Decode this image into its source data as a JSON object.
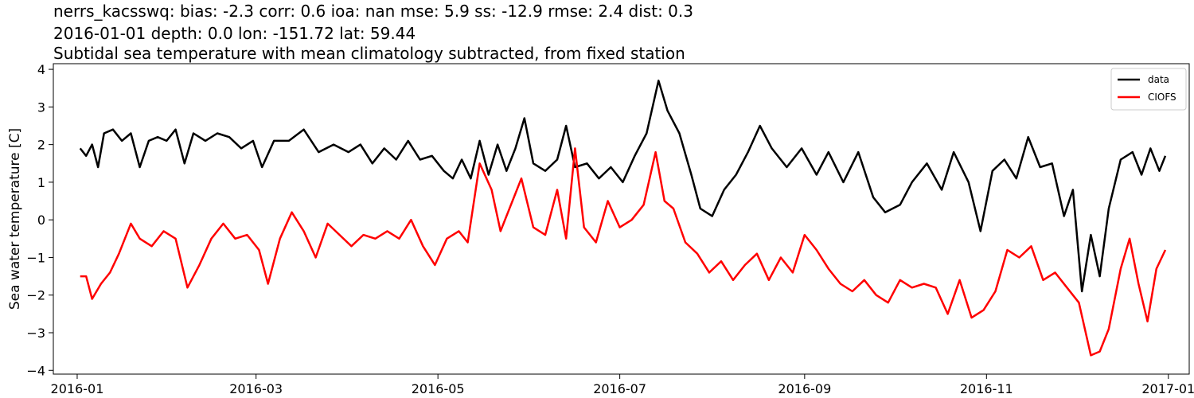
{
  "title_lines": [
    "nerrs_kacsswq: bias: -2.3  corr: 0.6  ioa: nan  mse: 5.9  ss: -12.9  rmse: 2.4  dist: 0.3",
    "2016-01-01 depth: 0.0 lon: -151.72 lat: 59.44",
    "Subtidal sea temperature with mean climatology subtracted, from fixed station"
  ],
  "chart_data": {
    "type": "line",
    "ylabel": "Sea water temperature [C]",
    "xlabel": "",
    "xlim": [
      "2015-12-24",
      "2017-01-08"
    ],
    "ylim": [
      -4.1,
      4.15
    ],
    "x_ticks": [
      "2016-01-01",
      "2016-03-01",
      "2016-05-01",
      "2016-07-01",
      "2016-09-01",
      "2016-11-01",
      "2017-01-01"
    ],
    "x_tick_labels": [
      "2016-01",
      "2016-03",
      "2016-05",
      "2016-07",
      "2016-09",
      "2016-11",
      "2017-01"
    ],
    "y_ticks": [
      -4,
      -3,
      -2,
      -1,
      0,
      1,
      2,
      3,
      4
    ],
    "grid": false,
    "legend_position": "top-right",
    "series": [
      {
        "name": "data",
        "color": "#000000",
        "points": [
          [
            "2016-01-02",
            1.9
          ],
          [
            "2016-01-04",
            1.7
          ],
          [
            "2016-01-06",
            2.0
          ],
          [
            "2016-01-08",
            1.4
          ],
          [
            "2016-01-10",
            2.3
          ],
          [
            "2016-01-13",
            2.4
          ],
          [
            "2016-01-16",
            2.1
          ],
          [
            "2016-01-19",
            2.3
          ],
          [
            "2016-01-22",
            1.4
          ],
          [
            "2016-01-25",
            2.1
          ],
          [
            "2016-01-28",
            2.2
          ],
          [
            "2016-01-31",
            2.1
          ],
          [
            "2016-02-03",
            2.4
          ],
          [
            "2016-02-06",
            1.5
          ],
          [
            "2016-02-09",
            2.3
          ],
          [
            "2016-02-13",
            2.1
          ],
          [
            "2016-02-17",
            2.3
          ],
          [
            "2016-02-21",
            2.2
          ],
          [
            "2016-02-25",
            1.9
          ],
          [
            "2016-02-29",
            2.1
          ],
          [
            "2016-03-03",
            1.4
          ],
          [
            "2016-03-07",
            2.1
          ],
          [
            "2016-03-12",
            2.1
          ],
          [
            "2016-03-17",
            2.4
          ],
          [
            "2016-03-22",
            1.8
          ],
          [
            "2016-03-27",
            2.0
          ],
          [
            "2016-04-01",
            1.8
          ],
          [
            "2016-04-05",
            2.0
          ],
          [
            "2016-04-09",
            1.5
          ],
          [
            "2016-04-13",
            1.9
          ],
          [
            "2016-04-17",
            1.6
          ],
          [
            "2016-04-21",
            2.1
          ],
          [
            "2016-04-25",
            1.6
          ],
          [
            "2016-04-29",
            1.7
          ],
          [
            "2016-05-03",
            1.3
          ],
          [
            "2016-05-06",
            1.1
          ],
          [
            "2016-05-09",
            1.6
          ],
          [
            "2016-05-12",
            1.1
          ],
          [
            "2016-05-15",
            2.1
          ],
          [
            "2016-05-18",
            1.2
          ],
          [
            "2016-05-21",
            2.0
          ],
          [
            "2016-05-24",
            1.3
          ],
          [
            "2016-05-27",
            1.9
          ],
          [
            "2016-05-30",
            2.7
          ],
          [
            "2016-06-02",
            1.5
          ],
          [
            "2016-06-06",
            1.3
          ],
          [
            "2016-06-10",
            1.6
          ],
          [
            "2016-06-13",
            2.5
          ],
          [
            "2016-06-16",
            1.4
          ],
          [
            "2016-06-20",
            1.5
          ],
          [
            "2016-06-24",
            1.1
          ],
          [
            "2016-06-28",
            1.4
          ],
          [
            "2016-07-02",
            1.0
          ],
          [
            "2016-07-06",
            1.7
          ],
          [
            "2016-07-10",
            2.3
          ],
          [
            "2016-07-14",
            3.7
          ],
          [
            "2016-07-17",
            2.9
          ],
          [
            "2016-07-21",
            2.3
          ],
          [
            "2016-07-25",
            1.2
          ],
          [
            "2016-07-28",
            0.3
          ],
          [
            "2016-08-01",
            0.1
          ],
          [
            "2016-08-05",
            0.8
          ],
          [
            "2016-08-09",
            1.2
          ],
          [
            "2016-08-13",
            1.8
          ],
          [
            "2016-08-17",
            2.5
          ],
          [
            "2016-08-21",
            1.9
          ],
          [
            "2016-08-26",
            1.4
          ],
          [
            "2016-08-31",
            1.9
          ],
          [
            "2016-09-05",
            1.2
          ],
          [
            "2016-09-09",
            1.8
          ],
          [
            "2016-09-14",
            1.0
          ],
          [
            "2016-09-19",
            1.8
          ],
          [
            "2016-09-24",
            0.6
          ],
          [
            "2016-09-28",
            0.2
          ],
          [
            "2016-10-03",
            0.4
          ],
          [
            "2016-10-07",
            1.0
          ],
          [
            "2016-10-12",
            1.5
          ],
          [
            "2016-10-17",
            0.8
          ],
          [
            "2016-10-21",
            1.8
          ],
          [
            "2016-10-26",
            1.0
          ],
          [
            "2016-10-30",
            -0.3
          ],
          [
            "2016-11-03",
            1.3
          ],
          [
            "2016-11-07",
            1.6
          ],
          [
            "2016-11-11",
            1.1
          ],
          [
            "2016-11-15",
            2.2
          ],
          [
            "2016-11-19",
            1.4
          ],
          [
            "2016-11-23",
            1.5
          ],
          [
            "2016-11-27",
            0.1
          ],
          [
            "2016-11-30",
            0.8
          ],
          [
            "2016-12-03",
            -1.9
          ],
          [
            "2016-12-06",
            -0.4
          ],
          [
            "2016-12-09",
            -1.5
          ],
          [
            "2016-12-12",
            0.3
          ],
          [
            "2016-12-16",
            1.6
          ],
          [
            "2016-12-20",
            1.8
          ],
          [
            "2016-12-23",
            1.2
          ],
          [
            "2016-12-26",
            1.9
          ],
          [
            "2016-12-29",
            1.3
          ],
          [
            "2016-12-31",
            1.7
          ]
        ]
      },
      {
        "name": "CIOFS",
        "color": "#ff0000",
        "points": [
          [
            "2016-01-02",
            -1.5
          ],
          [
            "2016-01-04",
            -1.5
          ],
          [
            "2016-01-06",
            -2.1
          ],
          [
            "2016-01-09",
            -1.7
          ],
          [
            "2016-01-12",
            -1.4
          ],
          [
            "2016-01-15",
            -0.9
          ],
          [
            "2016-01-19",
            -0.1
          ],
          [
            "2016-01-22",
            -0.5
          ],
          [
            "2016-01-26",
            -0.7
          ],
          [
            "2016-01-30",
            -0.3
          ],
          [
            "2016-02-03",
            -0.5
          ],
          [
            "2016-02-07",
            -1.8
          ],
          [
            "2016-02-11",
            -1.2
          ],
          [
            "2016-02-15",
            -0.5
          ],
          [
            "2016-02-19",
            -0.1
          ],
          [
            "2016-02-23",
            -0.5
          ],
          [
            "2016-02-27",
            -0.4
          ],
          [
            "2016-03-02",
            -0.8
          ],
          [
            "2016-03-05",
            -1.7
          ],
          [
            "2016-03-09",
            -0.5
          ],
          [
            "2016-03-13",
            0.2
          ],
          [
            "2016-03-17",
            -0.3
          ],
          [
            "2016-03-21",
            -1.0
          ],
          [
            "2016-03-25",
            -0.1
          ],
          [
            "2016-03-29",
            -0.4
          ],
          [
            "2016-04-02",
            -0.7
          ],
          [
            "2016-04-06",
            -0.4
          ],
          [
            "2016-04-10",
            -0.5
          ],
          [
            "2016-04-14",
            -0.3
          ],
          [
            "2016-04-18",
            -0.5
          ],
          [
            "2016-04-22",
            0.0
          ],
          [
            "2016-04-26",
            -0.7
          ],
          [
            "2016-04-30",
            -1.2
          ],
          [
            "2016-05-04",
            -0.5
          ],
          [
            "2016-05-08",
            -0.3
          ],
          [
            "2016-05-11",
            -0.6
          ],
          [
            "2016-05-15",
            1.5
          ],
          [
            "2016-05-19",
            0.8
          ],
          [
            "2016-05-22",
            -0.3
          ],
          [
            "2016-05-26",
            0.5
          ],
          [
            "2016-05-29",
            1.1
          ],
          [
            "2016-06-02",
            -0.2
          ],
          [
            "2016-06-06",
            -0.4
          ],
          [
            "2016-06-10",
            0.8
          ],
          [
            "2016-06-13",
            -0.5
          ],
          [
            "2016-06-16",
            1.9
          ],
          [
            "2016-06-19",
            -0.2
          ],
          [
            "2016-06-23",
            -0.6
          ],
          [
            "2016-06-27",
            0.5
          ],
          [
            "2016-07-01",
            -0.2
          ],
          [
            "2016-07-05",
            0.0
          ],
          [
            "2016-07-09",
            0.4
          ],
          [
            "2016-07-13",
            1.8
          ],
          [
            "2016-07-16",
            0.5
          ],
          [
            "2016-07-19",
            0.3
          ],
          [
            "2016-07-23",
            -0.6
          ],
          [
            "2016-07-27",
            -0.9
          ],
          [
            "2016-07-31",
            -1.4
          ],
          [
            "2016-08-04",
            -1.1
          ],
          [
            "2016-08-08",
            -1.6
          ],
          [
            "2016-08-12",
            -1.2
          ],
          [
            "2016-08-16",
            -0.9
          ],
          [
            "2016-08-20",
            -1.6
          ],
          [
            "2016-08-24",
            -1.0
          ],
          [
            "2016-08-28",
            -1.4
          ],
          [
            "2016-09-01",
            -0.4
          ],
          [
            "2016-09-05",
            -0.8
          ],
          [
            "2016-09-09",
            -1.3
          ],
          [
            "2016-09-13",
            -1.7
          ],
          [
            "2016-09-17",
            -1.9
          ],
          [
            "2016-09-21",
            -1.6
          ],
          [
            "2016-09-25",
            -2.0
          ],
          [
            "2016-09-29",
            -2.2
          ],
          [
            "2016-10-03",
            -1.6
          ],
          [
            "2016-10-07",
            -1.8
          ],
          [
            "2016-10-11",
            -1.7
          ],
          [
            "2016-10-15",
            -1.8
          ],
          [
            "2016-10-19",
            -2.5
          ],
          [
            "2016-10-23",
            -1.6
          ],
          [
            "2016-10-27",
            -2.6
          ],
          [
            "2016-10-31",
            -2.4
          ],
          [
            "2016-11-04",
            -1.9
          ],
          [
            "2016-11-08",
            -0.8
          ],
          [
            "2016-11-12",
            -1.0
          ],
          [
            "2016-11-16",
            -0.7
          ],
          [
            "2016-11-20",
            -1.6
          ],
          [
            "2016-11-24",
            -1.4
          ],
          [
            "2016-11-28",
            -1.8
          ],
          [
            "2016-12-02",
            -2.2
          ],
          [
            "2016-12-06",
            -3.6
          ],
          [
            "2016-12-09",
            -3.5
          ],
          [
            "2016-12-12",
            -2.9
          ],
          [
            "2016-12-16",
            -1.3
          ],
          [
            "2016-12-19",
            -0.5
          ],
          [
            "2016-12-22",
            -1.7
          ],
          [
            "2016-12-25",
            -2.7
          ],
          [
            "2016-12-28",
            -1.3
          ],
          [
            "2016-12-31",
            -0.8
          ]
        ]
      }
    ]
  }
}
